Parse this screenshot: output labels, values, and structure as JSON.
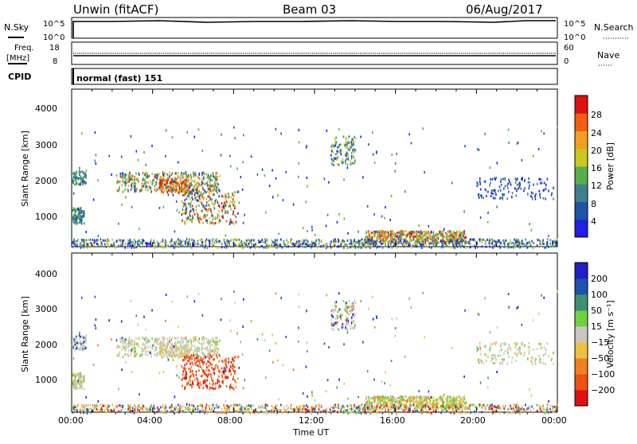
{
  "header": {
    "station": "Unwin (fitACF)",
    "beam": "Beam 03",
    "date": "06/Aug/2017"
  },
  "panels": {
    "nsky_label": "N.Sky",
    "nsearch_label": "N.Search",
    "freq_label_1": "Freq.",
    "freq_label_2": "[MHz]",
    "nave_label": "Nave",
    "cpid_label": "CPID",
    "cpid_value": "normal (fast) 151",
    "nsky_ticks": [
      "10^5",
      "10^0"
    ],
    "nsearch_ticks": [
      "10^5",
      "10^0"
    ],
    "freq_ticks": [
      "18",
      "8"
    ],
    "nave_ticks": [
      "60",
      "0"
    ]
  },
  "colors": {
    "power_scale": [
      "#1f1fe8",
      "#1e54a8",
      "#3f7f8a",
      "#57b04c",
      "#c8c820",
      "#f0a020",
      "#f06010",
      "#e01010"
    ],
    "velocity_scale": [
      "#e01010",
      "#f05010",
      "#f08020",
      "#f0c040",
      "#c8c8c0",
      "#70d040",
      "#3f8f70",
      "#2050b0",
      "#2020c8"
    ]
  },
  "chart_data": [
    {
      "type": "heatmap",
      "name": "power",
      "xlabel": "",
      "ylabel": "Slant Range [km]",
      "xlim": [
        0,
        24
      ],
      "ylim": [
        180,
        4600
      ],
      "y_ticks": [
        "4000",
        "3000",
        "2000",
        "1000"
      ],
      "colorbar_label": "Power [dB]",
      "colorbar_ticks": [
        "28",
        "24",
        "20",
        "16",
        "12",
        "8",
        "4"
      ],
      "colorbar_range": [
        0,
        32
      ]
    },
    {
      "type": "heatmap",
      "name": "velocity",
      "xlabel": "Time UT",
      "ylabel": "Slant Range [km]",
      "xlim": [
        0,
        24
      ],
      "ylim": [
        180,
        4600
      ],
      "x_ticks": [
        "00:00",
        "04:00",
        "08:00",
        "12:00",
        "16:00",
        "20:00",
        "00:00"
      ],
      "y_ticks": [
        "4000",
        "3000",
        "2000",
        "1000"
      ],
      "colorbar_label": "Velocity [m s⁻¹]",
      "colorbar_ticks": [
        "200",
        "100",
        "50",
        "15",
        "−15",
        "−50",
        "−100",
        "−200"
      ]
    }
  ]
}
